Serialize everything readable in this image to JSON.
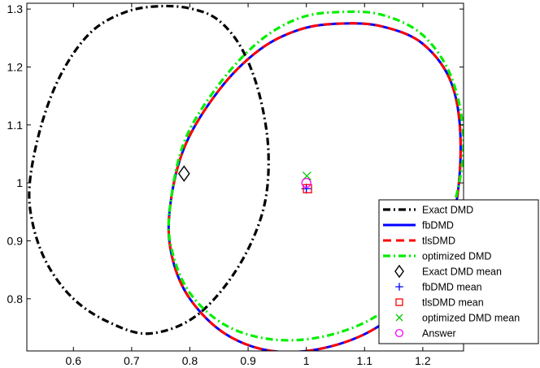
{
  "chart_data": {
    "type": "scatter",
    "title": "",
    "xlabel": "",
    "ylabel": "",
    "xlim": [
      0.52,
      1.27
    ],
    "ylim": [
      0.71,
      1.31
    ],
    "xticks": [
      0.6,
      0.7,
      0.8,
      0.9,
      1,
      1.1,
      1.2
    ],
    "xtick_labels": [
      "0.6",
      "0.7",
      "0.8",
      "0.9",
      "1",
      "1.1",
      "1.2"
    ],
    "yticks": [
      0.8,
      0.9,
      1,
      1.1,
      1.2,
      1.3
    ],
    "ytick_labels": [
      "0.8",
      "0.9",
      "1",
      "1.1",
      "1.2",
      "1.3"
    ],
    "grid": false,
    "legend_position": "bottom-right",
    "series": [
      {
        "name": "Exact DMD",
        "kind": "ellipse",
        "style": "dashdot",
        "color": "#000000",
        "x": [
          0.525,
          0.545,
          0.58,
          0.63,
          0.69,
          0.75,
          0.805,
          0.85,
          0.89,
          0.92,
          0.935,
          0.925,
          0.88,
          0.81,
          0.73,
          0.66,
          0.6,
          0.555,
          0.53,
          0.525
        ],
        "y": [
          1.0,
          1.1,
          1.19,
          1.26,
          1.295,
          1.305,
          1.3,
          1.28,
          1.23,
          1.15,
          1.05,
          0.95,
          0.85,
          0.77,
          0.74,
          0.76,
          0.8,
          0.86,
          0.93,
          1.0
        ]
      },
      {
        "name": "fbDMD",
        "kind": "ellipse",
        "style": "solid",
        "color": "#0000ff",
        "x": [
          0.765,
          0.79,
          0.85,
          0.92,
          0.99,
          1.06,
          1.13,
          1.2,
          1.25,
          1.265,
          1.25,
          1.2,
          1.12,
          1.03,
          0.94,
          0.86,
          0.8,
          0.77,
          0.765
        ],
        "y": [
          0.95,
          1.06,
          1.16,
          1.23,
          1.265,
          1.275,
          1.27,
          1.24,
          1.17,
          1.06,
          0.93,
          0.82,
          0.75,
          0.715,
          0.71,
          0.74,
          0.8,
          0.87,
          0.95
        ]
      },
      {
        "name": "tlsDMD",
        "kind": "ellipse",
        "style": "dashed",
        "color": "#ff0000",
        "x": [
          0.765,
          0.79,
          0.85,
          0.92,
          0.99,
          1.06,
          1.13,
          1.2,
          1.25,
          1.265,
          1.25,
          1.2,
          1.12,
          1.03,
          0.94,
          0.86,
          0.8,
          0.77,
          0.765
        ],
        "y": [
          0.95,
          1.06,
          1.16,
          1.23,
          1.265,
          1.275,
          1.27,
          1.24,
          1.17,
          1.06,
          0.93,
          0.82,
          0.75,
          0.715,
          0.71,
          0.74,
          0.8,
          0.87,
          0.95
        ]
      },
      {
        "name": "optimized DMD",
        "kind": "ellipse",
        "style": "dashdot",
        "color": "#00ee00",
        "x": [
          0.765,
          0.79,
          0.85,
          0.92,
          0.99,
          1.06,
          1.13,
          1.2,
          1.25,
          1.27,
          1.25,
          1.2,
          1.12,
          1.03,
          0.94,
          0.86,
          0.8,
          0.77,
          0.765
        ],
        "y": [
          0.95,
          1.07,
          1.17,
          1.245,
          1.285,
          1.295,
          1.29,
          1.255,
          1.18,
          1.07,
          0.95,
          0.84,
          0.77,
          0.735,
          0.73,
          0.755,
          0.81,
          0.88,
          0.95
        ]
      },
      {
        "name": "Exact DMD mean",
        "kind": "marker",
        "marker": "diamond",
        "color": "#000000",
        "x": [
          0.79
        ],
        "y": [
          1.016
        ]
      },
      {
        "name": "fbDMD mean",
        "kind": "marker",
        "marker": "plus",
        "color": "#0000ff",
        "x": [
          1.0
        ],
        "y": [
          0.99
        ]
      },
      {
        "name": "tlsDMD mean",
        "kind": "marker",
        "marker": "square",
        "color": "#ff0000",
        "x": [
          1.002
        ],
        "y": [
          0.99
        ]
      },
      {
        "name": "optimized DMD mean",
        "kind": "marker",
        "marker": "x",
        "color": "#00cc00",
        "x": [
          1.001
        ],
        "y": [
          1.012
        ]
      },
      {
        "name": "Answer",
        "kind": "marker",
        "marker": "circle",
        "color": "#ff00ff",
        "x": [
          1.0
        ],
        "y": [
          1.0
        ]
      }
    ]
  }
}
